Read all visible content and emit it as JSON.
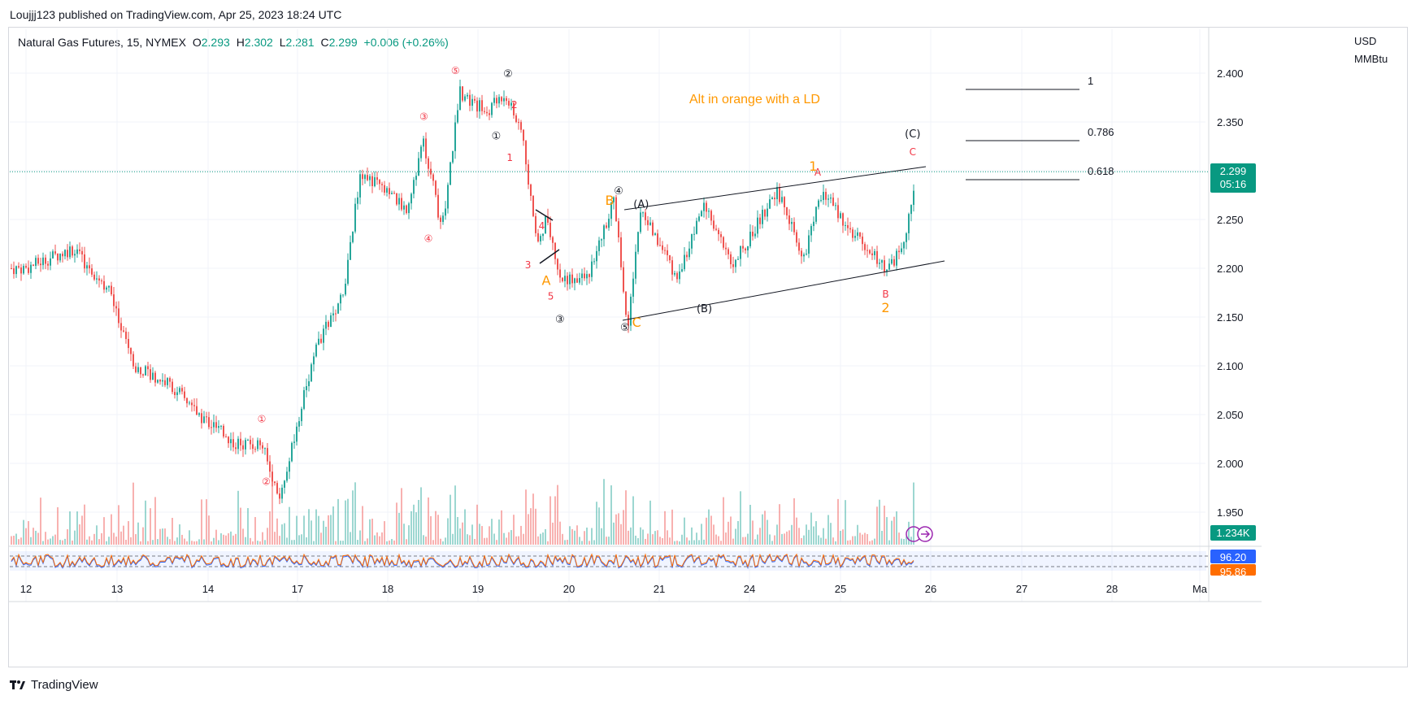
{
  "header": {
    "published": "Loujjj123 published on TradingView.com, Apr 25, 2023 18:24 UTC"
  },
  "legend": {
    "symbol": "Natural Gas Futures, 15, NYMEX",
    "open_label": "O",
    "open": "2.293",
    "high_label": "H",
    "high": "2.302",
    "low_label": "L",
    "low": "2.281",
    "close_label": "C",
    "close": "2.299",
    "change": "+0.006 (+0.26%)"
  },
  "price_axis": {
    "unit_line1": "USD",
    "unit_line2": "MMBtu",
    "ticks": [
      "2.400",
      "2.350",
      "2.300",
      "2.250",
      "2.200",
      "2.150",
      "2.100",
      "2.050",
      "2.000",
      "1.950"
    ],
    "last_price": "2.299",
    "countdown": "05:16",
    "volume_tag": "1.234K",
    "osc_tag_1": "96.20",
    "osc_tag_2": "95.86"
  },
  "time_axis": {
    "ticks": [
      "12",
      "13",
      "14",
      "17",
      "18",
      "19",
      "20",
      "21",
      "24",
      "25",
      "26",
      "27",
      "28",
      "Ma"
    ]
  },
  "annotation": {
    "text": "Alt in orange with a LD"
  },
  "fib_levels": [
    "1",
    "0.786",
    "0.618"
  ],
  "colors": {
    "up": "#26a69a",
    "down": "#ef5350",
    "orange": "#ff9800",
    "red_label": "#f23645",
    "price_tag": "#089981",
    "osc_blue": "#2962ff",
    "osc_orange": "#ff6d00"
  },
  "logo": {
    "text": "TradingView"
  },
  "chart_data": {
    "type": "line",
    "title": "Natural Gas Futures, 15, NYMEX",
    "xlabel": "",
    "ylabel": "USD MMBtu",
    "ylim": [
      1.92,
      2.43
    ],
    "grid": true,
    "x_ticks": [
      "12",
      "13",
      "14",
      "17",
      "18",
      "19",
      "20",
      "21",
      "24",
      "25",
      "26",
      "27",
      "28",
      "Ma"
    ],
    "series": [
      {
        "name": "Natural Gas Futures",
        "x": [
          "12",
          "12.5",
          "12.9",
          "13.2",
          "13.6",
          "13.9",
          "14.3",
          "14.6",
          "14.8",
          "17.2",
          "17.5",
          "17.7",
          "18.2",
          "18.4",
          "18.6",
          "18.8",
          "19.1",
          "19.3",
          "19.5",
          "19.65",
          "19.75",
          "19.9",
          "20.2",
          "20.5",
          "20.65",
          "20.8",
          "21.2",
          "21.5",
          "21.8",
          "24.3",
          "24.6",
          "24.8",
          "25.1",
          "25.5",
          "25.7",
          "25.85"
        ],
        "values": [
          2.2,
          2.22,
          2.18,
          2.1,
          2.08,
          2.05,
          2.02,
          2.02,
          1.96,
          2.12,
          2.17,
          2.3,
          2.26,
          2.33,
          2.24,
          2.38,
          2.36,
          2.38,
          2.33,
          2.22,
          2.25,
          2.19,
          2.19,
          2.27,
          2.14,
          2.26,
          2.19,
          2.27,
          2.2,
          2.28,
          2.21,
          2.28,
          2.24,
          2.2,
          2.22,
          2.3
        ]
      }
    ],
    "wave_labels_black": [
      {
        "t": "①",
        "x": "19.2",
        "y": 2.332
      },
      {
        "t": "②",
        "x": "19.33",
        "y": 2.396
      },
      {
        "t": "③",
        "x": "19.9",
        "y": 2.144
      },
      {
        "t": "④",
        "x": "20.55",
        "y": 2.276
      },
      {
        "t": "⑤",
        "x": "20.62",
        "y": 2.136
      },
      {
        "t": "(A)",
        "x": "20.8",
        "y": 2.262
      },
      {
        "t": "(B)",
        "x": "21.5",
        "y": 2.155
      },
      {
        "t": "(C)",
        "x": "25.8",
        "y": 2.334
      }
    ],
    "wave_labels_red": [
      {
        "t": "①",
        "x": "14.6",
        "y": 2.042
      },
      {
        "t": "②",
        "x": "14.65",
        "y": 1.978
      },
      {
        "t": "③",
        "x": "18.4",
        "y": 2.352
      },
      {
        "t": "④",
        "x": "18.45",
        "y": 2.227
      },
      {
        "t": "⑤",
        "x": "18.75",
        "y": 2.399
      },
      {
        "t": "1",
        "x": "19.35",
        "y": 2.31
      },
      {
        "t": "2",
        "x": "19.4",
        "y": 2.364
      },
      {
        "t": "3",
        "x": "19.55",
        "y": 2.2
      },
      {
        "t": "4",
        "x": "19.7",
        "y": 2.24
      },
      {
        "t": "5",
        "x": "19.8",
        "y": 2.168
      },
      {
        "t": "A",
        "x": "24.75",
        "y": 2.295
      },
      {
        "t": "B",
        "x": "25.5",
        "y": 2.17
      },
      {
        "t": "C",
        "x": "25.8",
        "y": 2.316
      }
    ],
    "wave_labels_orange": [
      {
        "t": "B",
        "x": "20.45",
        "y": 2.265
      },
      {
        "t": "A",
        "x": "19.75",
        "y": 2.183
      },
      {
        "t": "C",
        "x": "20.75",
        "y": 2.14
      },
      {
        "t": "1",
        "x": "24.7",
        "y": 2.3
      },
      {
        "t": "2",
        "x": "25.5",
        "y": 2.155
      }
    ]
  }
}
